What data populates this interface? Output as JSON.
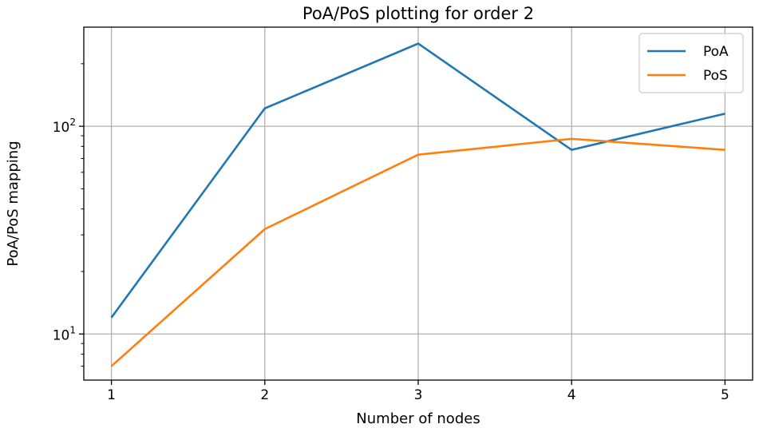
{
  "chart_data": {
    "type": "line",
    "title": "PoA/PoS plotting for order 2",
    "xlabel": "Number of nodes",
    "ylabel": "PoA/PoS mapping",
    "x": [
      1,
      2,
      3,
      4,
      5
    ],
    "xticks": [
      "1",
      "2",
      "3",
      "4",
      "5"
    ],
    "xlim": [
      0.82,
      5.18
    ],
    "yscale": "log",
    "ylim": [
      6,
      300
    ],
    "yticks": [
      {
        "value": 10,
        "base": "10",
        "exp": "1"
      },
      {
        "value": 100,
        "base": "10",
        "exp": "2"
      }
    ],
    "grid": true,
    "legend": "top-right",
    "series": [
      {
        "name": "PoA",
        "color": "#1f77b4",
        "values": [
          12,
          122,
          250,
          77,
          115
        ]
      },
      {
        "name": "PoS",
        "color": "#ff7f0e",
        "values": [
          7,
          32,
          73,
          87,
          77
        ]
      }
    ]
  }
}
